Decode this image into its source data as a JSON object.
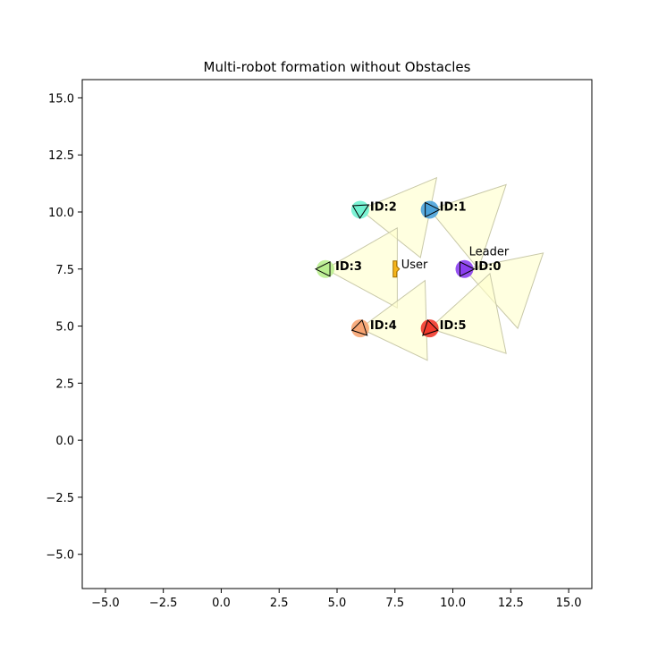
{
  "chart_data": {
    "type": "scatter",
    "title": "Multi-robot formation without Obstacles",
    "xlabel": "",
    "ylabel": "",
    "xlim": [
      -6.0,
      16.0
    ],
    "ylim": [
      -6.5,
      15.8
    ],
    "xticks": [
      -5.0,
      -2.5,
      0.0,
      2.5,
      5.0,
      7.5,
      10.0,
      12.5,
      15.0
    ],
    "yticks": [
      -5.0,
      -2.5,
      0.0,
      2.5,
      5.0,
      7.5,
      10.0,
      12.5,
      15.0
    ],
    "xtick_labels": [
      "−5.0",
      "−2.5",
      "0.0",
      "2.5",
      "5.0",
      "7.5",
      "10.0",
      "12.5",
      "15.0"
    ],
    "ytick_labels": [
      "−5.0",
      "−2.5",
      "0.0",
      "2.5",
      "5.0",
      "7.5",
      "10.0",
      "12.5",
      "15.0"
    ],
    "grid": false,
    "robots": [
      {
        "label": "ID:0",
        "x": 10.5,
        "y": 7.5,
        "heading_deg": 0,
        "color": "#8b3ff0"
      },
      {
        "label": "ID:1",
        "x": 9.0,
        "y": 10.1,
        "heading_deg": 0,
        "color": "#4ba3db"
      },
      {
        "label": "ID:2",
        "x": 6.0,
        "y": 10.1,
        "heading_deg": 30,
        "color": "#6ff2d0"
      },
      {
        "label": "ID:3",
        "x": 4.5,
        "y": 7.5,
        "heading_deg": 180,
        "color": "#b9ee8f"
      },
      {
        "label": "ID:4",
        "x": 6.0,
        "y": 4.9,
        "heading_deg": 315,
        "color": "#f7a472"
      },
      {
        "label": "ID:5",
        "x": 9.0,
        "y": 4.9,
        "heading_deg": 225,
        "color": "#f23a2c"
      }
    ],
    "sensor_cones": [
      {
        "apex": [
          10.5,
          7.5
        ],
        "p1": [
          13.9,
          8.2
        ],
        "p2": [
          12.8,
          4.9
        ]
      },
      {
        "apex": [
          9.0,
          10.1
        ],
        "p1": [
          12.3,
          11.2
        ],
        "p2": [
          11.1,
          7.5
        ]
      },
      {
        "apex": [
          6.0,
          10.1
        ],
        "p1": [
          9.3,
          11.5
        ],
        "p2": [
          8.6,
          8.0
        ]
      },
      {
        "apex": [
          4.5,
          7.5
        ],
        "p1": [
          7.6,
          9.3
        ],
        "p2": [
          7.6,
          5.8
        ]
      },
      {
        "apex": [
          6.0,
          4.9
        ],
        "p1": [
          8.9,
          3.5
        ],
        "p2": [
          8.8,
          7.0
        ]
      },
      {
        "apex": [
          9.0,
          4.9
        ],
        "p1": [
          12.3,
          3.8
        ],
        "p2": [
          11.6,
          7.3
        ]
      }
    ],
    "user": {
      "label": "User",
      "x": 7.5,
      "y": 7.5,
      "color": "#f5b51a"
    },
    "annotations": [
      {
        "text": "Leader",
        "x": 10.7,
        "y": 8.1
      }
    ],
    "colors": {
      "cone_fill": "#ffffcc",
      "cone_edge": "#c8c8a8"
    }
  }
}
